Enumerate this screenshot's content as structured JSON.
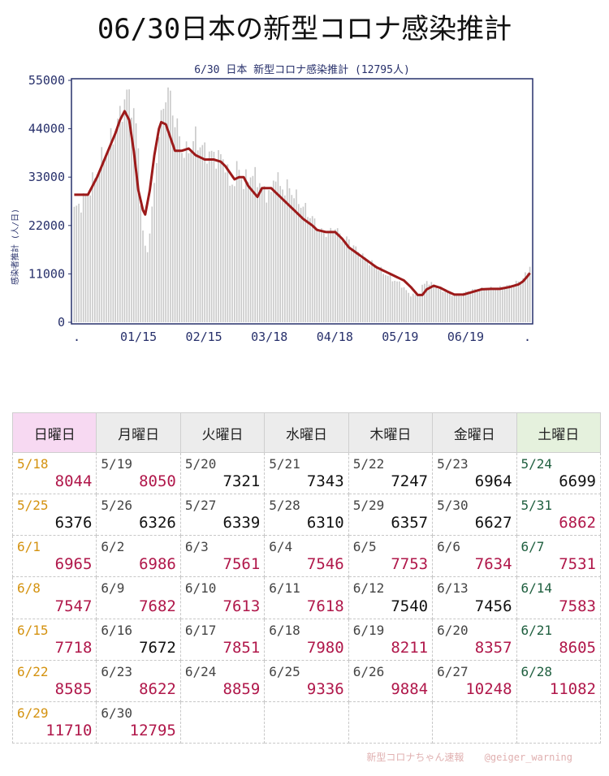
{
  "page_title": "06/30日本の新型コロナ感染推計",
  "chart_data": {
    "type": "bar",
    "title": "6/30 日本 新型コロナ感染推計 (12795人)",
    "ylabel": "感染者推計 (人/日)",
    "ylim": [
      0,
      55000
    ],
    "y_ticks": [
      "0",
      "11000",
      "22000",
      "33000",
      "44000",
      "55000"
    ],
    "x_tick_labels": [
      ".",
      "01/15",
      "02/15",
      "03/18",
      "04/18",
      "05/19",
      "06/19",
      "."
    ],
    "bars_color": "#c9c9c9",
    "line_color": "#9c1a1a",
    "grid": false,
    "series": [
      {
        "description": "daily bars and smoothed trend line",
        "keypoints_bar": [
          [
            0,
            25500
          ],
          [
            3,
            27000
          ],
          [
            6,
            29500
          ],
          [
            9,
            33000
          ],
          [
            12,
            37000
          ],
          [
            15,
            40000
          ],
          [
            18,
            44000
          ],
          [
            20,
            47000
          ],
          [
            22,
            50500
          ],
          [
            24,
            52000
          ],
          [
            26,
            47500
          ],
          [
            28,
            40000
          ],
          [
            29,
            28000
          ],
          [
            30,
            20000
          ],
          [
            31,
            17000
          ],
          [
            32,
            16500
          ],
          [
            34,
            25000
          ],
          [
            36,
            38000
          ],
          [
            38,
            46000
          ],
          [
            40,
            52500
          ],
          [
            42,
            51000
          ],
          [
            44,
            46000
          ],
          [
            46,
            42000
          ],
          [
            48,
            38000
          ],
          [
            51,
            40000
          ],
          [
            53,
            42000
          ],
          [
            56,
            39500
          ],
          [
            60,
            38000
          ],
          [
            64,
            37500
          ],
          [
            66,
            36500
          ],
          [
            68,
            31000
          ],
          [
            70,
            32500
          ],
          [
            72,
            35500
          ],
          [
            74,
            31000
          ],
          [
            76,
            33500
          ],
          [
            80,
            33000
          ],
          [
            82,
            30000
          ],
          [
            86,
            29000
          ],
          [
            88,
            34500
          ],
          [
            90,
            30500
          ],
          [
            94,
            30500
          ],
          [
            98,
            27500
          ],
          [
            102,
            25000
          ],
          [
            106,
            22000
          ],
          [
            108,
            20500
          ],
          [
            112,
            20500
          ],
          [
            114,
            22000
          ],
          [
            116,
            19500
          ],
          [
            120,
            18500
          ],
          [
            124,
            16000
          ],
          [
            128,
            14000
          ],
          [
            132,
            12500
          ],
          [
            136,
            11000
          ],
          [
            140,
            9500
          ],
          [
            143,
            8500
          ],
          [
            146,
            6500
          ],
          [
            150,
            6000
          ],
          [
            152,
            8000
          ],
          [
            154,
            9500
          ],
          [
            156,
            8500
          ],
          [
            160,
            7500
          ],
          [
            164,
            6500
          ],
          [
            168,
            6200
          ],
          [
            172,
            7000
          ],
          [
            176,
            7500
          ],
          [
            180,
            7600
          ],
          [
            184,
            7700
          ],
          [
            188,
            8000
          ],
          [
            192,
            8600
          ],
          [
            194,
            9300
          ],
          [
            196,
            10000
          ],
          [
            198,
            11500
          ],
          [
            199,
            13000
          ]
        ],
        "keypoints_line": [
          [
            0,
            29000
          ],
          [
            6,
            29000
          ],
          [
            10,
            33000
          ],
          [
            14,
            38000
          ],
          [
            18,
            43000
          ],
          [
            20,
            46000
          ],
          [
            22,
            48000
          ],
          [
            24,
            46000
          ],
          [
            26,
            39000
          ],
          [
            28,
            30000
          ],
          [
            30,
            25500
          ],
          [
            31,
            24500
          ],
          [
            33,
            30000
          ],
          [
            35,
            38000
          ],
          [
            37,
            44000
          ],
          [
            38,
            45500
          ],
          [
            40,
            45000
          ],
          [
            42,
            42000
          ],
          [
            44,
            39000
          ],
          [
            47,
            39000
          ],
          [
            50,
            39500
          ],
          [
            53,
            38000
          ],
          [
            57,
            37000
          ],
          [
            61,
            37000
          ],
          [
            64,
            36500
          ],
          [
            66,
            35500
          ],
          [
            68,
            34000
          ],
          [
            70,
            32500
          ],
          [
            72,
            33000
          ],
          [
            74,
            33000
          ],
          [
            76,
            31000
          ],
          [
            80,
            28500
          ],
          [
            82,
            30500
          ],
          [
            86,
            30500
          ],
          [
            88,
            29500
          ],
          [
            92,
            27500
          ],
          [
            96,
            25500
          ],
          [
            100,
            23500
          ],
          [
            104,
            22000
          ],
          [
            106,
            21000
          ],
          [
            110,
            20500
          ],
          [
            114,
            20500
          ],
          [
            117,
            19000
          ],
          [
            120,
            17000
          ],
          [
            124,
            15500
          ],
          [
            128,
            14000
          ],
          [
            132,
            12500
          ],
          [
            136,
            11500
          ],
          [
            140,
            10500
          ],
          [
            144,
            9500
          ],
          [
            147,
            8000
          ],
          [
            150,
            6200
          ],
          [
            152,
            6200
          ],
          [
            154,
            7500
          ],
          [
            157,
            8300
          ],
          [
            160,
            7800
          ],
          [
            163,
            7000
          ],
          [
            166,
            6300
          ],
          [
            170,
            6300
          ],
          [
            174,
            6900
          ],
          [
            178,
            7500
          ],
          [
            182,
            7600
          ],
          [
            186,
            7600
          ],
          [
            190,
            8000
          ],
          [
            194,
            8600
          ],
          [
            196,
            9300
          ],
          [
            198,
            10500
          ],
          [
            199,
            11200
          ]
        ]
      }
    ]
  },
  "table": {
    "headers": [
      "日曜日",
      "月曜日",
      "火曜日",
      "水曜日",
      "木曜日",
      "金曜日",
      "土曜日"
    ],
    "rows": [
      [
        {
          "date": "5/18",
          "value": "8044",
          "up": true
        },
        {
          "date": "5/19",
          "value": "8050",
          "up": true
        },
        {
          "date": "5/20",
          "value": "7321",
          "up": false
        },
        {
          "date": "5/21",
          "value": "7343",
          "up": false
        },
        {
          "date": "5/22",
          "value": "7247",
          "up": false
        },
        {
          "date": "5/23",
          "value": "6964",
          "up": false
        },
        {
          "date": "5/24",
          "value": "6699",
          "up": false
        }
      ],
      [
        {
          "date": "5/25",
          "value": "6376",
          "up": false
        },
        {
          "date": "5/26",
          "value": "6326",
          "up": false
        },
        {
          "date": "5/27",
          "value": "6339",
          "up": false
        },
        {
          "date": "5/28",
          "value": "6310",
          "up": false
        },
        {
          "date": "5/29",
          "value": "6357",
          "up": false
        },
        {
          "date": "5/30",
          "value": "6627",
          "up": false
        },
        {
          "date": "5/31",
          "value": "6862",
          "up": true
        }
      ],
      [
        {
          "date": "6/1",
          "value": "6965",
          "up": true
        },
        {
          "date": "6/2",
          "value": "6986",
          "up": true
        },
        {
          "date": "6/3",
          "value": "7561",
          "up": true
        },
        {
          "date": "6/4",
          "value": "7546",
          "up": true
        },
        {
          "date": "6/5",
          "value": "7753",
          "up": true
        },
        {
          "date": "6/6",
          "value": "7634",
          "up": true
        },
        {
          "date": "6/7",
          "value": "7531",
          "up": true
        }
      ],
      [
        {
          "date": "6/8",
          "value": "7547",
          "up": true
        },
        {
          "date": "6/9",
          "value": "7682",
          "up": true
        },
        {
          "date": "6/10",
          "value": "7613",
          "up": true
        },
        {
          "date": "6/11",
          "value": "7618",
          "up": true
        },
        {
          "date": "6/12",
          "value": "7540",
          "up": false
        },
        {
          "date": "6/13",
          "value": "7456",
          "up": false
        },
        {
          "date": "6/14",
          "value": "7583",
          "up": true
        }
      ],
      [
        {
          "date": "6/15",
          "value": "7718",
          "up": true
        },
        {
          "date": "6/16",
          "value": "7672",
          "up": false
        },
        {
          "date": "6/17",
          "value": "7851",
          "up": true
        },
        {
          "date": "6/18",
          "value": "7980",
          "up": true
        },
        {
          "date": "6/19",
          "value": "8211",
          "up": true
        },
        {
          "date": "6/20",
          "value": "8357",
          "up": true
        },
        {
          "date": "6/21",
          "value": "8605",
          "up": true
        }
      ],
      [
        {
          "date": "6/22",
          "value": "8585",
          "up": true
        },
        {
          "date": "6/23",
          "value": "8622",
          "up": true
        },
        {
          "date": "6/24",
          "value": "8859",
          "up": true
        },
        {
          "date": "6/25",
          "value": "9336",
          "up": true
        },
        {
          "date": "6/26",
          "value": "9884",
          "up": true
        },
        {
          "date": "6/27",
          "value": "10248",
          "up": true
        },
        {
          "date": "6/28",
          "value": "11082",
          "up": true
        }
      ],
      [
        {
          "date": "6/29",
          "value": "11710",
          "up": true
        },
        {
          "date": "6/30",
          "value": "12795",
          "up": true
        },
        {
          "date": "",
          "value": "",
          "up": false
        },
        {
          "date": "",
          "value": "",
          "up": false
        },
        {
          "date": "",
          "value": "",
          "up": false
        },
        {
          "date": "",
          "value": "",
          "up": false
        },
        {
          "date": "",
          "value": "",
          "up": false
        }
      ]
    ]
  },
  "footer": {
    "brand": "新型コロナちゃん速報",
    "handle": "@geiger_warning"
  }
}
